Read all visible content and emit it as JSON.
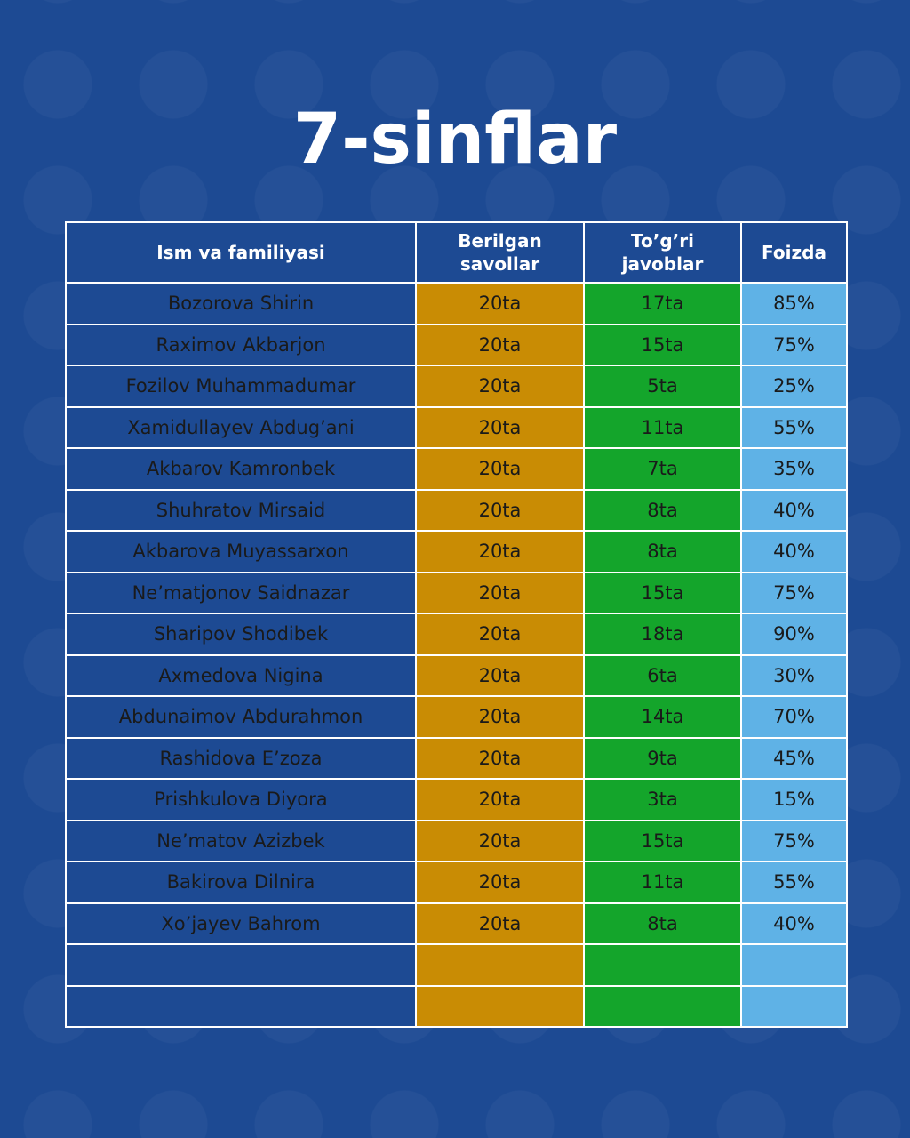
{
  "title": "7-sinflar",
  "colors": {
    "background": "#1d4a93",
    "given_column": "#c98c04",
    "correct_column": "#14a52b",
    "percent_column": "#5fb2e6"
  },
  "table": {
    "headers": {
      "name": "Ism va familiyasi",
      "given": "Berilgan savollar",
      "correct": "To’g’ri javoblar",
      "percent": "Foizda"
    },
    "rows": [
      {
        "name": "Bozorova Shirin",
        "given": "20ta",
        "correct": "17ta",
        "percent": "85%"
      },
      {
        "name": "Raximov Akbarjon",
        "given": "20ta",
        "correct": "15ta",
        "percent": "75%"
      },
      {
        "name": "Fozilov Muhammadumar",
        "given": "20ta",
        "correct": "5ta",
        "percent": "25%"
      },
      {
        "name": "Xamidullayev Abdug’ani",
        "given": "20ta",
        "correct": "11ta",
        "percent": "55%"
      },
      {
        "name": "Akbarov Kamronbek",
        "given": "20ta",
        "correct": "7ta",
        "percent": "35%"
      },
      {
        "name": "Shuhratov Mirsaid",
        "given": "20ta",
        "correct": "8ta",
        "percent": "40%"
      },
      {
        "name": "Akbarova Muyassarxon",
        "given": "20ta",
        "correct": "8ta",
        "percent": "40%"
      },
      {
        "name": "Ne’matjonov Saidnazar",
        "given": "20ta",
        "correct": "15ta",
        "percent": "75%"
      },
      {
        "name": "Sharipov Shodibek",
        "given": "20ta",
        "correct": "18ta",
        "percent": "90%"
      },
      {
        "name": "Axmedova Nigina",
        "given": "20ta",
        "correct": "6ta",
        "percent": "30%"
      },
      {
        "name": "Abdunaimov Abdurahmon",
        "given": "20ta",
        "correct": "14ta",
        "percent": "70%"
      },
      {
        "name": "Rashidova E’zoza",
        "given": "20ta",
        "correct": "9ta",
        "percent": "45%"
      },
      {
        "name": "Prishkulova Diyora",
        "given": "20ta",
        "correct": "3ta",
        "percent": "15%"
      },
      {
        "name": "Ne’matov Azizbek",
        "given": "20ta",
        "correct": "15ta",
        "percent": "75%"
      },
      {
        "name": "Bakirova Dilnira",
        "given": "20ta",
        "correct": "11ta",
        "percent": "55%"
      },
      {
        "name": "Xo’jayev Bahrom",
        "given": "20ta",
        "correct": "8ta",
        "percent": "40%"
      },
      {
        "name": "",
        "given": "",
        "correct": "",
        "percent": ""
      },
      {
        "name": "",
        "given": "",
        "correct": "",
        "percent": ""
      }
    ]
  }
}
